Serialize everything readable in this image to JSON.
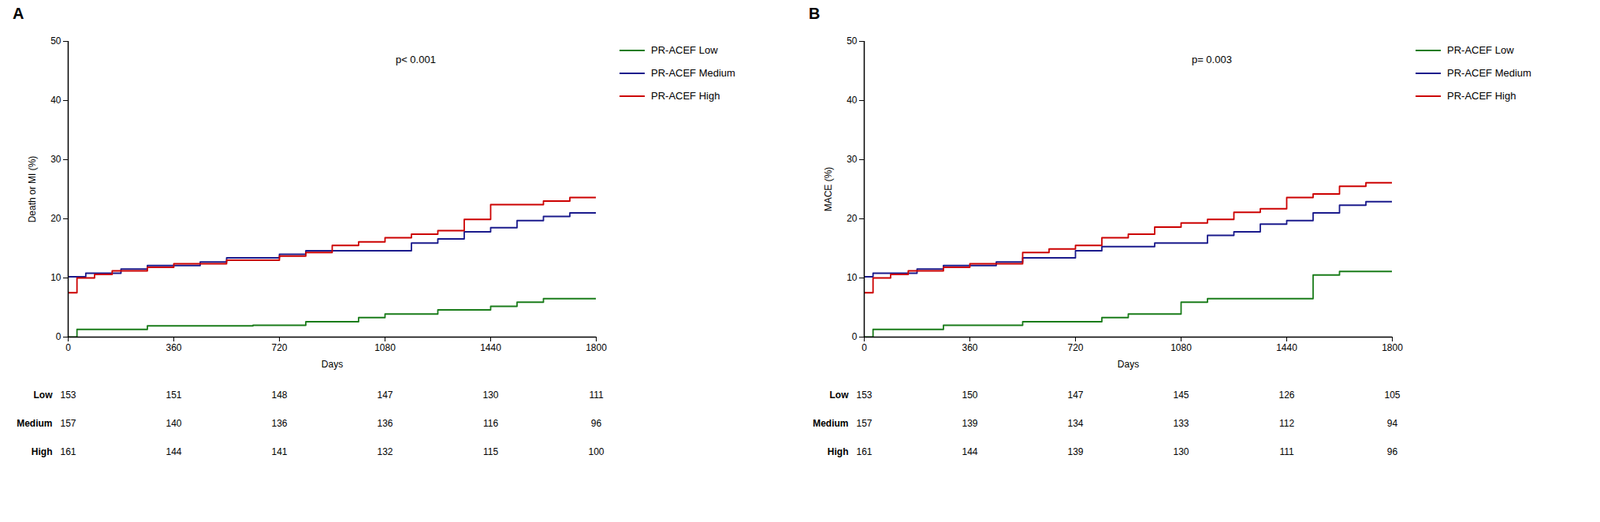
{
  "chart_data": [
    {
      "type": "step",
      "title": "A",
      "xlabel": "Days",
      "ylabel": "Death or MI (%)",
      "annotations": [
        "p< 0.001"
      ],
      "series": [
        {
          "name": "PR-ACEF Low",
          "color": "#1a7c1a",
          "x": [
            0,
            30,
            60,
            90,
            180,
            270,
            360,
            450,
            540,
            630,
            720,
            810,
            900,
            990,
            1080,
            1170,
            1260,
            1350,
            1440,
            1530,
            1620,
            1710,
            1800
          ],
          "values": [
            0,
            1.3,
            1.3,
            1.3,
            1.3,
            1.9,
            1.9,
            1.9,
            1.9,
            2.0,
            2.0,
            2.6,
            2.6,
            3.3,
            3.9,
            3.9,
            4.6,
            4.6,
            5.2,
            5.9,
            6.5,
            6.5,
            6.5
          ]
        },
        {
          "name": "PR-ACEF Medium",
          "color": "#1a1a8c",
          "x": [
            0,
            30,
            60,
            90,
            180,
            210,
            270,
            360,
            450,
            540,
            630,
            720,
            810,
            900,
            990,
            1080,
            1170,
            1260,
            1350,
            1440,
            1530,
            1620,
            1710,
            1800
          ],
          "values": [
            10.2,
            10.2,
            10.8,
            10.8,
            11.5,
            11.5,
            12.1,
            12.1,
            12.7,
            13.4,
            13.4,
            14.0,
            14.6,
            14.6,
            14.6,
            14.6,
            15.9,
            16.6,
            17.8,
            18.5,
            19.7,
            20.4,
            21.0,
            21.0
          ]
        },
        {
          "name": "PR-ACEF High",
          "color": "#cc0000",
          "x": [
            0,
            30,
            90,
            150,
            210,
            270,
            360,
            450,
            540,
            630,
            720,
            810,
            900,
            990,
            1080,
            1170,
            1260,
            1350,
            1440,
            1530,
            1620,
            1710,
            1800
          ],
          "values": [
            7.5,
            10.0,
            10.6,
            11.2,
            11.2,
            11.8,
            12.4,
            12.4,
            13.0,
            13.0,
            13.7,
            14.3,
            15.5,
            16.1,
            16.8,
            17.4,
            18.0,
            19.9,
            22.4,
            22.4,
            23.0,
            23.6,
            23.6
          ]
        }
      ],
      "xlim": [
        0,
        1800
      ],
      "xticks": [
        0,
        360,
        720,
        1080,
        1440,
        1800
      ],
      "ylim": [
        0,
        50
      ],
      "yticks": [
        0,
        10,
        20,
        30,
        40,
        50
      ],
      "grid": false,
      "legend": "right",
      "at_risk_labels": [
        "Low",
        "Medium",
        "High"
      ],
      "at_risk_times": [
        0,
        360,
        720,
        1080,
        1440,
        1800
      ],
      "at_risk_values": [
        [
          153,
          151,
          148,
          147,
          130,
          111
        ],
        [
          157,
          140,
          136,
          136,
          116,
          96
        ],
        [
          161,
          144,
          141,
          132,
          115,
          100
        ]
      ]
    },
    {
      "type": "step",
      "title": "B",
      "xlabel": "Days",
      "ylabel": "MACE (%)",
      "annotations": [
        "p= 0.003"
      ],
      "series": [
        {
          "name": "PR-ACEF Low",
          "color": "#1a7c1a",
          "x": [
            0,
            30,
            60,
            90,
            180,
            270,
            360,
            450,
            540,
            630,
            720,
            810,
            900,
            990,
            1080,
            1170,
            1260,
            1350,
            1440,
            1530,
            1620,
            1710,
            1800
          ],
          "values": [
            0,
            1.3,
            1.3,
            1.3,
            1.3,
            2.0,
            2.0,
            2.0,
            2.6,
            2.6,
            2.6,
            3.3,
            3.9,
            3.9,
            5.9,
            6.5,
            6.5,
            6.5,
            6.5,
            10.5,
            11.1,
            11.1,
            11.1
          ]
        },
        {
          "name": "PR-ACEF Medium",
          "color": "#1a1a8c",
          "x": [
            0,
            30,
            60,
            90,
            180,
            210,
            270,
            360,
            450,
            540,
            630,
            720,
            810,
            900,
            990,
            1080,
            1170,
            1260,
            1350,
            1440,
            1530,
            1620,
            1710,
            1800
          ],
          "values": [
            10.2,
            10.8,
            10.8,
            10.8,
            11.5,
            11.5,
            12.1,
            12.1,
            12.7,
            13.4,
            13.4,
            14.6,
            15.3,
            15.3,
            15.9,
            15.9,
            17.2,
            17.8,
            19.1,
            19.7,
            21.0,
            22.3,
            22.9,
            22.9
          ]
        },
        {
          "name": "PR-ACEF High",
          "color": "#cc0000",
          "x": [
            0,
            30,
            90,
            150,
            210,
            270,
            360,
            450,
            540,
            630,
            720,
            810,
            900,
            990,
            1080,
            1170,
            1260,
            1350,
            1440,
            1530,
            1620,
            1710,
            1800
          ],
          "values": [
            7.5,
            10.0,
            10.6,
            11.2,
            11.2,
            11.8,
            12.4,
            12.4,
            14.3,
            14.9,
            15.5,
            16.8,
            17.4,
            18.6,
            19.3,
            19.9,
            21.1,
            21.7,
            23.6,
            24.2,
            25.5,
            26.1,
            26.1
          ]
        }
      ],
      "xlim": [
        0,
        1800
      ],
      "xticks": [
        0,
        360,
        720,
        1080,
        1440,
        1800
      ],
      "ylim": [
        0,
        50
      ],
      "yticks": [
        0,
        10,
        20,
        30,
        40,
        50
      ],
      "grid": false,
      "legend": "right",
      "at_risk_labels": [
        "Low",
        "Medium",
        "High"
      ],
      "at_risk_times": [
        0,
        360,
        720,
        1080,
        1440,
        1800
      ],
      "at_risk_values": [
        [
          153,
          150,
          147,
          145,
          126,
          105
        ],
        [
          157,
          139,
          134,
          133,
          112,
          94
        ],
        [
          161,
          144,
          139,
          130,
          111,
          96
        ]
      ]
    }
  ]
}
